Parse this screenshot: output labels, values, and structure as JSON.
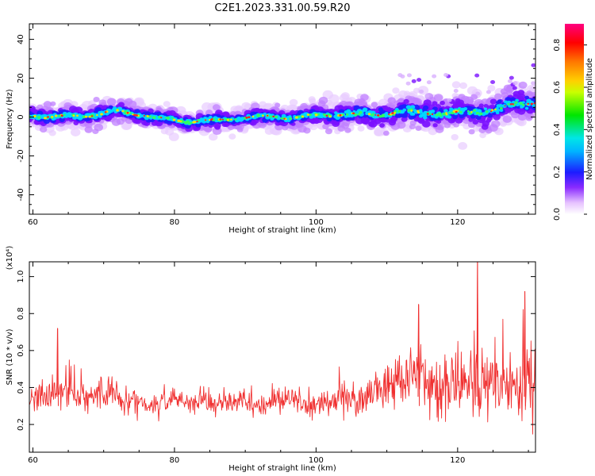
{
  "figure_title": "C2E1.2023.331.00.59.R20",
  "chart_data": [
    {
      "type": "heatmap",
      "title": "",
      "xlabel": "Height of straight line (km)",
      "ylabel": "Frequency (Hz)",
      "xlim": [
        59.5,
        131
      ],
      "ylim": [
        -50,
        48
      ],
      "xticks": [
        60,
        80,
        100,
        120
      ],
      "yticks": [
        -40,
        -20,
        0,
        20,
        40
      ],
      "colorbar": {
        "label": "Normalized spectral amplitude",
        "range": [
          0,
          0.9
        ],
        "ticks": [
          0.0,
          0.2,
          0.4,
          0.6,
          0.8
        ],
        "colormap": [
          "#ffffff",
          "#e0b0ff",
          "#8000ff",
          "#1a1aff",
          "#00e0ff",
          "#00ff40",
          "#fff000",
          "#ff8000",
          "#ff0000",
          "#ff0080"
        ]
      },
      "ridge_center_hz": [
        [
          60,
          1
        ],
        [
          64,
          0
        ],
        [
          68,
          1
        ],
        [
          72,
          3
        ],
        [
          76,
          1
        ],
        [
          78,
          -1
        ],
        [
          82,
          -2
        ],
        [
          86,
          -2
        ],
        [
          90,
          0
        ],
        [
          94,
          0
        ],
        [
          98,
          0
        ],
        [
          102,
          1
        ],
        [
          104,
          2
        ],
        [
          108,
          1
        ],
        [
          112,
          3
        ],
        [
          116,
          2
        ],
        [
          120,
          2
        ],
        [
          124,
          3
        ],
        [
          128,
          6
        ],
        [
          131,
          8
        ]
      ],
      "ridge_halfwidth_hz": [
        [
          60,
          6
        ],
        [
          70,
          6
        ],
        [
          80,
          5
        ],
        [
          90,
          5
        ],
        [
          100,
          6
        ],
        [
          108,
          8
        ],
        [
          115,
          9
        ],
        [
          122,
          10
        ],
        [
          131,
          9
        ]
      ]
    },
    {
      "type": "line",
      "title": "",
      "xlabel": "Height of straight line (km)",
      "ylabel": "SNR (10 * v/v)",
      "y_multiplier": "(x10⁴)",
      "xlim": [
        59.5,
        131
      ],
      "ylim": [
        0.05,
        1.08
      ],
      "xticks": [
        60,
        80,
        100,
        120
      ],
      "yticks": [
        0.2,
        0.4,
        0.6,
        0.8,
        1.0
      ],
      "color": "#f03030",
      "series": [
        {
          "x": [
            60,
            62,
            64,
            66,
            68,
            70,
            72,
            74,
            76,
            78,
            80,
            82,
            84,
            86,
            88,
            90,
            92,
            94,
            96,
            98,
            100,
            102,
            104,
            106,
            108,
            110,
            112,
            114,
            116,
            118,
            120,
            122,
            124,
            126,
            128,
            130,
            131
          ],
          "y": [
            0.34,
            0.36,
            0.37,
            0.36,
            0.35,
            0.36,
            0.35,
            0.33,
            0.31,
            0.31,
            0.34,
            0.33,
            0.32,
            0.31,
            0.34,
            0.32,
            0.3,
            0.33,
            0.34,
            0.32,
            0.3,
            0.32,
            0.35,
            0.33,
            0.37,
            0.41,
            0.45,
            0.48,
            0.44,
            0.4,
            0.42,
            0.44,
            0.38,
            0.4,
            0.42,
            0.45,
            0.44
          ],
          "band": [
            0.06,
            0.08,
            0.09,
            0.08,
            0.08,
            0.08,
            0.08,
            0.07,
            0.06,
            0.06,
            0.06,
            0.06,
            0.06,
            0.06,
            0.06,
            0.06,
            0.05,
            0.06,
            0.07,
            0.06,
            0.06,
            0.06,
            0.08,
            0.08,
            0.09,
            0.11,
            0.14,
            0.16,
            0.15,
            0.15,
            0.16,
            0.18,
            0.17,
            0.17,
            0.18,
            0.19,
            0.19
          ],
          "peaks": [
            [
              63.5,
              0.72
            ],
            [
              114.5,
              0.85
            ],
            [
              122.8,
              1.08
            ],
            [
              129.5,
              0.92
            ]
          ]
        }
      ]
    }
  ]
}
